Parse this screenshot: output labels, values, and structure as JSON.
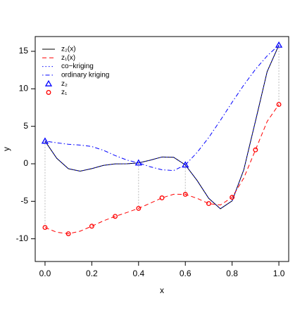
{
  "chart_data": {
    "type": "line",
    "xlabel": "x",
    "ylabel": "y",
    "xlim": [
      -0.042,
      1.042
    ],
    "ylim": [
      -13.03,
      16.97
    ],
    "xticks": [
      {
        "value": 0,
        "label": "0.0"
      },
      0.2,
      0.4,
      0.6,
      0.8,
      {
        "value": 1,
        "label": "1.0"
      }
    ],
    "yticks": [
      -10,
      -5,
      0,
      5,
      10,
      15
    ],
    "legend": "top-left",
    "series": [
      {
        "name": "z₂(x)",
        "color": "#000000",
        "style": "solid",
        "x": [
          0,
          0.05,
          0.1,
          0.15,
          0.2,
          0.25,
          0.3,
          0.35,
          0.4,
          0.45,
          0.5,
          0.55,
          0.6,
          0.65,
          0.7,
          0.75,
          0.8,
          0.85,
          0.9,
          0.95,
          1
        ],
        "values": [
          3.03,
          0.738,
          -0.657,
          -0.978,
          -0.64,
          -0.21,
          -0.016,
          0.002,
          0.115,
          0.483,
          0.909,
          0.871,
          -0.149,
          -2.209,
          -4.606,
          -5.993,
          -4.949,
          -0.799,
          5.712,
          12.303,
          15.83
        ]
      },
      {
        "name": "z₁(x)",
        "color": "#ff0000",
        "style": "dashed",
        "x": [
          0,
          0.05,
          0.1,
          0.15,
          0.2,
          0.25,
          0.3,
          0.35,
          0.4,
          0.45,
          0.5,
          0.55,
          0.6,
          0.65,
          0.7,
          0.75,
          0.8,
          0.85,
          0.9,
          0.95,
          1
        ],
        "values": [
          -8.49,
          -9.131,
          -9.329,
          -8.989,
          -8.32,
          -7.605,
          -7.008,
          -6.499,
          -5.942,
          -5.258,
          -4.545,
          -4.064,
          -4.075,
          -4.605,
          -5.303,
          -5.497,
          -4.475,
          -1.9,
          1.856,
          5.652,
          7.915
        ]
      },
      {
        "name": "co−kriging",
        "color": "#0000ff",
        "style": "dotted",
        "x": [
          0,
          0.05,
          0.1,
          0.15,
          0.2,
          0.25,
          0.3,
          0.35,
          0.4,
          0.45,
          0.5,
          0.55,
          0.6,
          0.65,
          0.7,
          0.75,
          0.8,
          0.85,
          0.9,
          0.95,
          1
        ],
        "values": [
          3.03,
          0.738,
          -0.657,
          -0.978,
          -0.64,
          -0.21,
          -0.016,
          0.002,
          0.115,
          0.483,
          0.909,
          0.871,
          -0.149,
          -2.209,
          -4.606,
          -5.993,
          -4.949,
          -0.799,
          5.712,
          12.303,
          15.83
        ]
      },
      {
        "name": "ordinary kriging",
        "color": "#0000ff",
        "style": "dashdot",
        "x": [
          0,
          0.05,
          0.1,
          0.15,
          0.2,
          0.25,
          0.3,
          0.35,
          0.4,
          0.45,
          0.5,
          0.55,
          0.6,
          0.65,
          0.7,
          0.75,
          0.8,
          0.85,
          0.9,
          0.95,
          1
        ],
        "values": [
          3.03,
          2.8,
          2.6,
          2.5,
          2.3,
          1.8,
          1.1,
          0.5,
          0.12,
          -0.4,
          -0.8,
          -0.9,
          -0.15,
          1.5,
          3.5,
          5.8,
          8.2,
          10.5,
          12.6,
          14.4,
          15.83
        ]
      },
      {
        "name": "z₂",
        "color": "#0000ff",
        "style": "triangle",
        "x": [
          0,
          0.4,
          0.6,
          1
        ],
        "values": [
          3.03,
          0.115,
          -0.149,
          15.83
        ]
      },
      {
        "name": "z₁",
        "color": "#ff0000",
        "style": "circle",
        "x": [
          0,
          0.1,
          0.2,
          0.3,
          0.4,
          0.5,
          0.6,
          0.7,
          0.8,
          0.9,
          1
        ],
        "values": [
          -8.49,
          -9.329,
          -8.32,
          -7.008,
          -5.942,
          -4.545,
          -4.075,
          -5.303,
          -4.475,
          1.856,
          7.915
        ]
      }
    ]
  }
}
